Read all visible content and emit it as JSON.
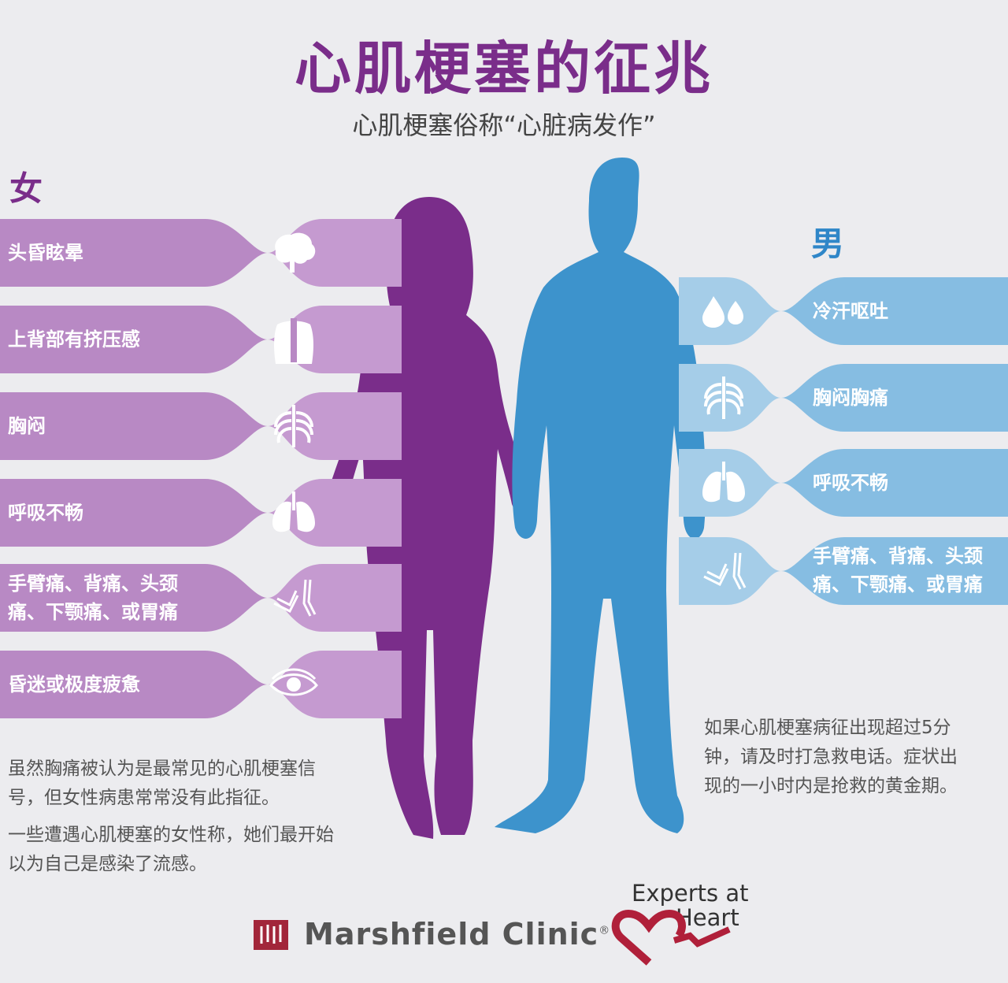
{
  "title": "心肌梗塞的征兆",
  "subtitle": "心肌梗塞俗称“心脏病发作”",
  "female": {
    "label": "女",
    "symptoms": [
      {
        "label": "头昏眩晕",
        "icon": "brain-icon"
      },
      {
        "label": "上背部有挤压感",
        "icon": "back-spine-icon"
      },
      {
        "label": "胸闷",
        "icon": "ribcage-icon"
      },
      {
        "label": "呼吸不畅",
        "icon": "lungs-icon"
      },
      {
        "label_line1": "手臂痛、背痛、头颈",
        "label_line2": "痛、下颚痛、或胃痛",
        "icon": "arm-pain-icon"
      },
      {
        "label": "昏迷或极度疲惫",
        "icon": "eye-icon"
      }
    ],
    "note_para1_line1": "虽然胸痛被认为是最常见的心肌梗塞信",
    "note_para1_line2": "号，但女性病患常常没有此指征。",
    "note_para2_line1": "一些遭遇心肌梗塞的女性称，她们最开始",
    "note_para2_line2": "以为自己是感染了流感。"
  },
  "male": {
    "label": "男",
    "symptoms": [
      {
        "label": "冷汗呕吐",
        "icon": "sweat-drops-icon"
      },
      {
        "label": "胸闷胸痛",
        "icon": "ribcage-icon"
      },
      {
        "label": "呼吸不畅",
        "icon": "lungs-icon"
      },
      {
        "label_line1": "手臂痛、背痛、头颈",
        "label_line2": "痛、下颚痛、或胃痛",
        "icon": "arm-pain-icon"
      }
    ],
    "note_line1": "如果心肌梗塞病征出现超过5分",
    "note_line2": "钟，请及时打急救电话。症状出",
    "note_line3": "现的一小时内是抢救的黄金期。"
  },
  "footer": {
    "brand": "Marshfield Clinic",
    "brand_mark": "®",
    "partner_line1": "Experts at",
    "partner_line2": "Heart"
  },
  "colors": {
    "female": "#7a2d8a",
    "female_band": "#b889c4",
    "male": "#2f86c8",
    "male_band": "#86bde2"
  }
}
